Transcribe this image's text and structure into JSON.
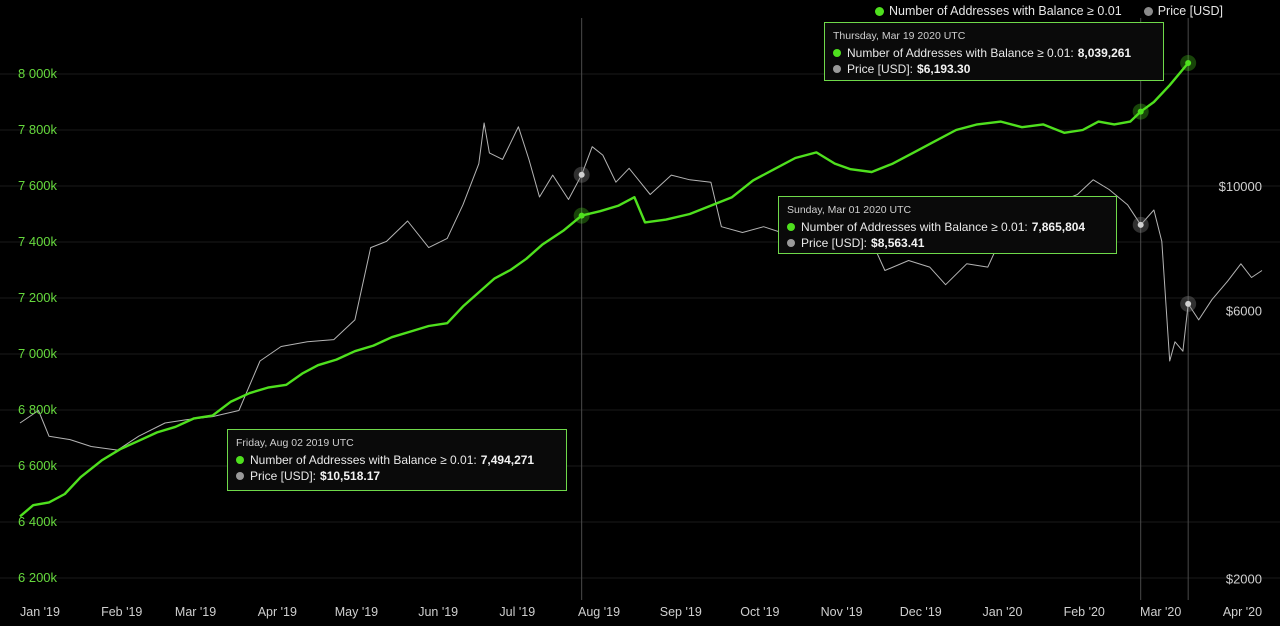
{
  "colors": {
    "addresses": "#4fe01e",
    "price": "#b4b4b4",
    "left_axis_text": "#66d93d",
    "right_axis_text": "#cfcfcf",
    "grid": "#1a1a1a",
    "background": "#000000"
  },
  "legend": {
    "addresses_label": "Number of Addresses with Balance ≥ 0.01",
    "price_label": "Price [USD]"
  },
  "tooltips": [
    {
      "date": "Friday, Aug 02 2019 UTC",
      "addresses_label": "Number of Addresses with Balance ≥ 0.01:",
      "addresses_value": "7,494,271",
      "price_label": "Price [USD]:",
      "price_value": "$10,518.17"
    },
    {
      "date": "Sunday, Mar 01 2020 UTC",
      "addresses_label": "Number of Addresses with Balance ≥ 0.01:",
      "addresses_value": "7,865,804",
      "price_label": "Price [USD]:",
      "price_value": "$8,563.41"
    },
    {
      "date": "Thursday, Mar 19 2020 UTC",
      "addresses_label": "Number of Addresses with Balance ≥ 0.01:",
      "addresses_value": "8,039,261",
      "price_label": "Price [USD]:",
      "price_value": "$6,193.30"
    }
  ],
  "chart_data": {
    "type": "line",
    "title": "",
    "xlabel": "",
    "ylabel_left": "",
    "ylabel_right": "",
    "x_axis": {
      "ticks": [
        "Jan '19",
        "Feb '19",
        "Mar '19",
        "Apr '19",
        "May '19",
        "Jun '19",
        "Jul '19",
        "Aug '19",
        "Sep '19",
        "Oct '19",
        "Nov '19",
        "Dec '19",
        "Jan '20",
        "Feb '20",
        "Mar '20",
        "Apr '20"
      ],
      "range": [
        "2019-01-01",
        "2020-04-16"
      ]
    },
    "y_left": {
      "range": [
        6150000,
        8200000
      ],
      "ticks": [
        6200000,
        6400000,
        6600000,
        6800000,
        7000000,
        7200000,
        7400000,
        7600000,
        7800000,
        8000000
      ],
      "tick_labels": [
        "6 200k",
        "6 400k",
        "6 600k",
        "6 800k",
        "7 000k",
        "7 200k",
        "7 400k",
        "7 600k",
        "7 800k",
        "8 000k"
      ]
    },
    "y_right": {
      "scale": "log",
      "range": [
        1900,
        20000
      ],
      "ticks": [
        2000,
        6000,
        10000
      ],
      "tick_labels": [
        "$2000",
        "$6000",
        "$10000"
      ]
    },
    "grid": true,
    "legend_position": "top-right",
    "series": [
      {
        "name": "Number of Addresses with Balance ≥ 0.01",
        "axis": "left",
        "points": [
          [
            "2019-01-01",
            6420000
          ],
          [
            "2019-01-06",
            6460000
          ],
          [
            "2019-01-12",
            6470000
          ],
          [
            "2019-01-18",
            6500000
          ],
          [
            "2019-01-24",
            6560000
          ],
          [
            "2019-02-01",
            6620000
          ],
          [
            "2019-02-08",
            6660000
          ],
          [
            "2019-02-15",
            6690000
          ],
          [
            "2019-02-22",
            6720000
          ],
          [
            "2019-03-01",
            6740000
          ],
          [
            "2019-03-08",
            6770000
          ],
          [
            "2019-03-15",
            6780000
          ],
          [
            "2019-03-22",
            6830000
          ],
          [
            "2019-03-29",
            6860000
          ],
          [
            "2019-04-05",
            6880000
          ],
          [
            "2019-04-12",
            6890000
          ],
          [
            "2019-04-18",
            6930000
          ],
          [
            "2019-04-24",
            6960000
          ],
          [
            "2019-05-01",
            6980000
          ],
          [
            "2019-05-08",
            7010000
          ],
          [
            "2019-05-15",
            7030000
          ],
          [
            "2019-05-22",
            7060000
          ],
          [
            "2019-05-29",
            7080000
          ],
          [
            "2019-06-05",
            7100000
          ],
          [
            "2019-06-12",
            7110000
          ],
          [
            "2019-06-18",
            7170000
          ],
          [
            "2019-06-24",
            7220000
          ],
          [
            "2019-06-30",
            7270000
          ],
          [
            "2019-07-06",
            7300000
          ],
          [
            "2019-07-12",
            7340000
          ],
          [
            "2019-07-18",
            7390000
          ],
          [
            "2019-07-26",
            7440000
          ],
          [
            "2019-08-02",
            7494271
          ],
          [
            "2019-08-09",
            7510000
          ],
          [
            "2019-08-16",
            7530000
          ],
          [
            "2019-08-22",
            7560000
          ],
          [
            "2019-08-26",
            7470000
          ],
          [
            "2019-09-03",
            7480000
          ],
          [
            "2019-09-12",
            7500000
          ],
          [
            "2019-09-20",
            7530000
          ],
          [
            "2019-09-28",
            7560000
          ],
          [
            "2019-10-06",
            7620000
          ],
          [
            "2019-10-14",
            7660000
          ],
          [
            "2019-10-22",
            7700000
          ],
          [
            "2019-10-30",
            7720000
          ],
          [
            "2019-11-06",
            7680000
          ],
          [
            "2019-11-12",
            7660000
          ],
          [
            "2019-11-20",
            7650000
          ],
          [
            "2019-11-28",
            7680000
          ],
          [
            "2019-12-06",
            7720000
          ],
          [
            "2019-12-14",
            7760000
          ],
          [
            "2019-12-22",
            7800000
          ],
          [
            "2019-12-30",
            7820000
          ],
          [
            "2020-01-08",
            7830000
          ],
          [
            "2020-01-16",
            7810000
          ],
          [
            "2020-01-24",
            7820000
          ],
          [
            "2020-02-01",
            7790000
          ],
          [
            "2020-02-08",
            7800000
          ],
          [
            "2020-02-14",
            7830000
          ],
          [
            "2020-02-20",
            7820000
          ],
          [
            "2020-02-26",
            7830000
          ],
          [
            "2020-03-01",
            7865804
          ],
          [
            "2020-03-06",
            7900000
          ],
          [
            "2020-03-12",
            7960000
          ],
          [
            "2020-03-19",
            8039261
          ]
        ]
      },
      {
        "name": "Price [USD]",
        "axis": "right",
        "points": [
          [
            "2019-01-01",
            3800
          ],
          [
            "2019-01-08",
            4000
          ],
          [
            "2019-01-12",
            3600
          ],
          [
            "2019-01-20",
            3550
          ],
          [
            "2019-01-28",
            3450
          ],
          [
            "2019-02-07",
            3400
          ],
          [
            "2019-02-15",
            3600
          ],
          [
            "2019-02-25",
            3800
          ],
          [
            "2019-03-05",
            3850
          ],
          [
            "2019-03-15",
            3900
          ],
          [
            "2019-03-25",
            4000
          ],
          [
            "2019-04-02",
            4900
          ],
          [
            "2019-04-10",
            5200
          ],
          [
            "2019-04-20",
            5300
          ],
          [
            "2019-04-30",
            5350
          ],
          [
            "2019-05-08",
            5800
          ],
          [
            "2019-05-14",
            7800
          ],
          [
            "2019-05-20",
            8000
          ],
          [
            "2019-05-28",
            8700
          ],
          [
            "2019-06-05",
            7800
          ],
          [
            "2019-06-12",
            8100
          ],
          [
            "2019-06-18",
            9300
          ],
          [
            "2019-06-24",
            11000
          ],
          [
            "2019-06-26",
            13000
          ],
          [
            "2019-06-28",
            11500
          ],
          [
            "2019-07-03",
            11200
          ],
          [
            "2019-07-09",
            12800
          ],
          [
            "2019-07-13",
            11200
          ],
          [
            "2019-07-17",
            9600
          ],
          [
            "2019-07-22",
            10500
          ],
          [
            "2019-07-28",
            9500
          ],
          [
            "2019-08-02",
            10518.17
          ],
          [
            "2019-08-06",
            11800
          ],
          [
            "2019-08-10",
            11400
          ],
          [
            "2019-08-15",
            10200
          ],
          [
            "2019-08-20",
            10800
          ],
          [
            "2019-08-28",
            9700
          ],
          [
            "2019-09-05",
            10500
          ],
          [
            "2019-09-12",
            10300
          ],
          [
            "2019-09-20",
            10200
          ],
          [
            "2019-09-24",
            8500
          ],
          [
            "2019-10-02",
            8300
          ],
          [
            "2019-10-10",
            8500
          ],
          [
            "2019-10-20",
            8200
          ],
          [
            "2019-10-26",
            9500
          ],
          [
            "2019-11-04",
            9300
          ],
          [
            "2019-11-12",
            8800
          ],
          [
            "2019-11-20",
            8000
          ],
          [
            "2019-11-25",
            7100
          ],
          [
            "2019-12-04",
            7400
          ],
          [
            "2019-12-12",
            7200
          ],
          [
            "2019-12-18",
            6700
          ],
          [
            "2019-12-26",
            7300
          ],
          [
            "2020-01-03",
            7200
          ],
          [
            "2020-01-08",
            8100
          ],
          [
            "2020-01-15",
            8700
          ],
          [
            "2020-01-22",
            8600
          ],
          [
            "2020-01-30",
            9400
          ],
          [
            "2020-02-06",
            9700
          ],
          [
            "2020-02-12",
            10300
          ],
          [
            "2020-02-18",
            9900
          ],
          [
            "2020-02-25",
            9300
          ],
          [
            "2020-03-01",
            8563.41
          ],
          [
            "2020-03-06",
            9100
          ],
          [
            "2020-03-09",
            8000
          ],
          [
            "2020-03-12",
            4900
          ],
          [
            "2020-03-14",
            5300
          ],
          [
            "2020-03-17",
            5100
          ],
          [
            "2020-03-19",
            6193.3
          ],
          [
            "2020-03-23",
            5800
          ],
          [
            "2020-03-28",
            6300
          ],
          [
            "2020-04-03",
            6800
          ],
          [
            "2020-04-08",
            7300
          ],
          [
            "2020-04-12",
            6900
          ],
          [
            "2020-04-16",
            7100
          ]
        ]
      }
    ]
  }
}
